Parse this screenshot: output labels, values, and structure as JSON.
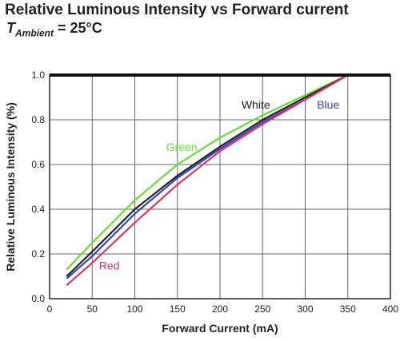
{
  "chart_data": {
    "type": "line",
    "title": "Relative Luminous Intensity vs Forward current",
    "subtitle": {
      "var": "T",
      "sub": "Ambient",
      "rest": " = 25°C"
    },
    "xlabel": "Forward Current (mA)",
    "ylabel": "Relative Luminous Intensity (%)",
    "xlim": [
      0,
      400
    ],
    "ylim": [
      0,
      1.0
    ],
    "xticks": [
      "0",
      "50",
      "100",
      "150",
      "200",
      "250",
      "300",
      "350",
      "400"
    ],
    "yticks": [
      "0.0",
      "0.2",
      "0.4",
      "0.6",
      "0.8",
      "1.0"
    ],
    "grid": true,
    "series": [
      {
        "name": "Green",
        "color": "#66dd33",
        "x": [
          20,
          50,
          100,
          150,
          200,
          250,
          300,
          350
        ],
        "y": [
          0.13,
          0.25,
          0.44,
          0.6,
          0.72,
          0.82,
          0.91,
          1.0
        ],
        "label_at": [
          155,
          0.66
        ]
      },
      {
        "name": "White",
        "color": "#222222",
        "x": [
          20,
          50,
          100,
          150,
          200,
          250,
          300,
          350
        ],
        "y": [
          0.1,
          0.21,
          0.4,
          0.55,
          0.68,
          0.8,
          0.9,
          1.0
        ],
        "label_at": [
          242,
          0.85
        ]
      },
      {
        "name": "Blue",
        "color": "#3344bb",
        "x": [
          20,
          50,
          100,
          150,
          200,
          250,
          300,
          350
        ],
        "y": [
          0.09,
          0.19,
          0.38,
          0.54,
          0.67,
          0.79,
          0.89,
          1.0
        ],
        "label_at": [
          327,
          0.85
        ]
      },
      {
        "name": "Red",
        "color": "#dd3366",
        "x": [
          20,
          50,
          100,
          150,
          200,
          250,
          300,
          350
        ],
        "y": [
          0.06,
          0.16,
          0.34,
          0.51,
          0.66,
          0.78,
          0.89,
          1.0
        ],
        "label_at": [
          70,
          0.13
        ]
      }
    ]
  }
}
